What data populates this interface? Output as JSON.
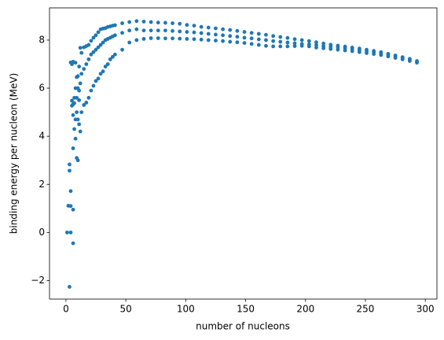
{
  "chart_data": {
    "type": "scatter",
    "xlabel": "number of nucleons",
    "ylabel": "binding energy per nucleon (MeV)",
    "color": "#1f77b4",
    "xlim": [
      -13.7,
      309.7
    ],
    "ylim": [
      -2.77,
      9.34
    ],
    "xticks": [
      0,
      50,
      100,
      150,
      200,
      250,
      300
    ],
    "yticks": [
      {
        "value": -2,
        "label": "−2"
      },
      0,
      2,
      4,
      6,
      8
    ],
    "x": [
      1,
      2,
      3,
      3,
      4,
      4,
      4,
      5,
      5,
      6,
      6,
      6,
      6,
      4,
      3,
      6,
      7,
      7,
      7,
      8,
      8,
      8,
      9,
      9,
      9,
      10,
      10,
      10,
      11,
      11,
      11,
      12,
      12,
      12,
      5,
      6,
      8,
      9,
      10,
      11,
      13,
      13,
      13,
      15,
      15,
      15,
      17,
      17,
      17,
      19,
      19,
      19,
      21,
      21,
      21,
      23,
      23,
      23,
      25,
      25,
      25,
      27,
      27,
      27,
      29,
      29,
      29,
      31,
      31,
      31,
      33,
      33,
      33,
      35,
      35,
      35,
      37,
      37,
      37,
      39,
      39,
      39,
      41,
      41,
      41,
      47,
      47,
      47,
      53,
      53,
      53,
      59,
      59,
      59,
      65,
      65,
      65,
      71,
      71,
      71,
      77,
      77,
      77,
      83,
      83,
      83,
      89,
      89,
      89,
      95,
      95,
      95,
      101,
      101,
      101,
      107,
      107,
      107,
      113,
      113,
      113,
      119,
      119,
      119,
      125,
      125,
      125,
      131,
      131,
      131,
      137,
      137,
      137,
      143,
      143,
      143,
      149,
      149,
      149,
      155,
      155,
      155,
      161,
      161,
      161,
      167,
      167,
      167,
      173,
      173,
      173,
      179,
      179,
      179,
      185,
      185,
      185,
      191,
      191,
      191,
      197,
      197,
      197,
      203,
      203,
      203,
      209,
      209,
      209,
      215,
      215,
      215,
      221,
      221,
      221,
      227,
      227,
      227,
      233,
      233,
      233,
      239,
      239,
      239,
      245,
      245,
      245,
      251,
      251,
      251,
      257,
      257,
      257,
      263,
      263,
      263,
      269,
      269,
      269,
      275,
      275,
      275,
      281,
      281,
      281,
      287,
      287,
      287,
      293,
      293,
      293
    ],
    "values": [
      0,
      1.11,
      2.83,
      2.57,
      7.07,
      1.72,
      1.1,
      5.48,
      5.27,
      5.33,
      4.88,
      3.5,
      0.95,
      0,
      -2.26,
      -0.45,
      5.6,
      5.38,
      4.3,
      7.06,
      4.7,
      3.9,
      6.46,
      5.0,
      3.1,
      6.5,
      6.0,
      3.0,
      6.9,
      5.9,
      4.5,
      7.68,
      6.2,
      4.2,
      7.0,
      7.1,
      6.0,
      5.6,
      4.7,
      5.5,
      7.47,
      6.6,
      5.0,
      7.7,
      6.8,
      5.3,
      7.75,
      7.0,
      5.4,
      7.8,
      7.2,
      5.6,
      7.97,
      7.4,
      5.9,
      8.1,
      7.5,
      6.1,
      8.2,
      7.6,
      6.3,
      8.33,
      7.7,
      6.4,
      8.45,
      7.8,
      6.6,
      8.48,
      7.9,
      6.7,
      8.5,
      8.0,
      6.9,
      8.55,
      8.05,
      7.0,
      8.57,
      8.1,
      7.2,
      8.6,
      8.15,
      7.3,
      8.62,
      8.2,
      7.4,
      8.7,
      8.3,
      7.6,
      8.75,
      8.4,
      7.9,
      8.79,
      8.45,
      8.0,
      8.77,
      8.4,
      8.05,
      8.75,
      8.4,
      8.08,
      8.73,
      8.4,
      8.08,
      8.72,
      8.4,
      8.07,
      8.7,
      8.38,
      8.07,
      8.68,
      8.36,
      8.06,
      8.63,
      8.34,
      8.05,
      8.6,
      8.32,
      8.04,
      8.55,
      8.29,
      8.02,
      8.52,
      8.26,
      8.0,
      8.49,
      8.23,
      7.98,
      8.45,
      8.2,
      7.96,
      8.42,
      8.17,
      7.93,
      8.38,
      8.14,
      7.91,
      8.34,
      8.1,
      7.88,
      8.3,
      8.07,
      7.84,
      8.26,
      8.03,
      7.8,
      8.22,
      8.0,
      7.76,
      8.17,
      7.96,
      7.74,
      8.13,
      7.93,
      7.74,
      8.09,
      7.9,
      7.74,
      8.04,
      7.87,
      7.75,
      8.0,
      7.84,
      7.76,
      7.96,
      7.82,
      7.74,
      7.91,
      7.79,
      7.69,
      7.86,
      7.75,
      7.66,
      7.81,
      7.72,
      7.63,
      7.77,
      7.69,
      7.6,
      7.73,
      7.66,
      7.57,
      7.69,
      7.62,
      7.54,
      7.65,
      7.58,
      7.5,
      7.6,
      7.54,
      7.46,
      7.55,
      7.49,
      7.42,
      7.5,
      7.44,
      7.38,
      7.43,
      7.38,
      7.32,
      7.36,
      7.31,
      7.26,
      7.29,
      7.25,
      7.2,
      7.22,
      7.17,
      7.13,
      7.13,
      7.1,
      7.06
    ]
  }
}
